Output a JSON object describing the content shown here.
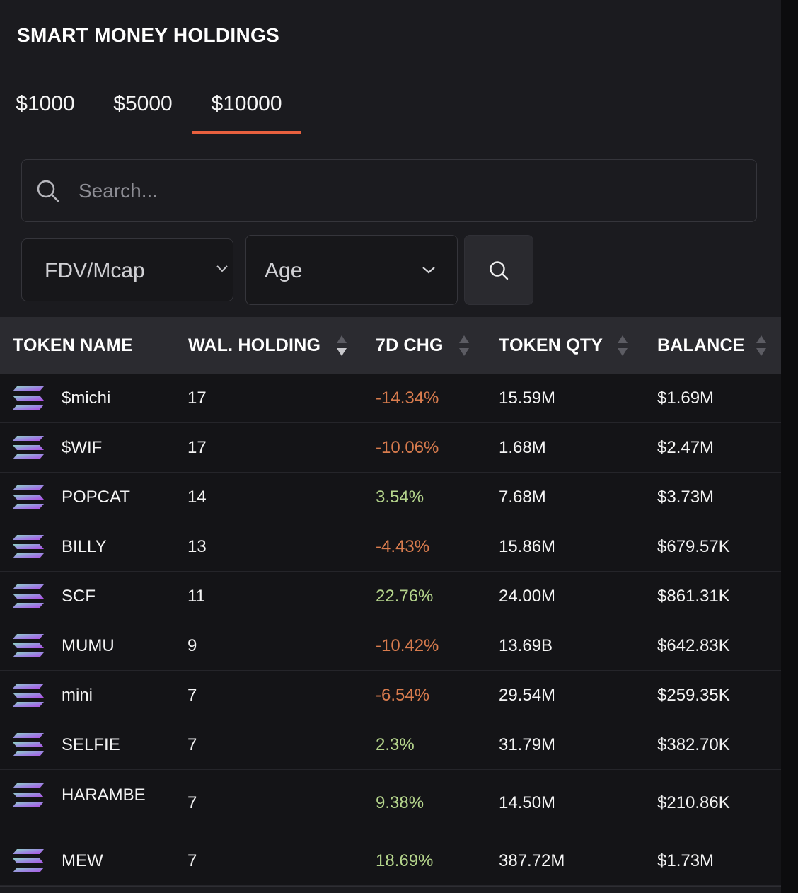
{
  "header": {
    "title": "SMART MONEY HOLDINGS"
  },
  "tabs": [
    {
      "label": "$1000",
      "active": false
    },
    {
      "label": "$5000",
      "active": false
    },
    {
      "label": "$10000",
      "active": true
    }
  ],
  "accent_color": "#e8603e",
  "search": {
    "placeholder": "Search...",
    "value": ""
  },
  "filters": {
    "fdv": {
      "label": "FDV/Mcap"
    },
    "age": {
      "label": "Age"
    }
  },
  "table": {
    "columns": [
      "TOKEN NAME",
      "WAL. HOLDING",
      "7D CHG",
      "TOKEN QTY",
      "BALANCE"
    ],
    "rows": [
      {
        "name": "$michi",
        "holding": "17",
        "chg": "-14.34%",
        "qty": "15.59M",
        "balance": "$1.69M"
      },
      {
        "name": "$WIF",
        "holding": "17",
        "chg": "-10.06%",
        "qty": "1.68M",
        "balance": "$2.47M"
      },
      {
        "name": "POPCAT",
        "holding": "14",
        "chg": "3.54%",
        "qty": "7.68M",
        "balance": "$3.73M"
      },
      {
        "name": "BILLY",
        "holding": "13",
        "chg": "-4.43%",
        "qty": "15.86M",
        "balance": "$679.57K"
      },
      {
        "name": "SCF",
        "holding": "11",
        "chg": "22.76%",
        "qty": "24.00M",
        "balance": "$861.31K"
      },
      {
        "name": "MUMU",
        "holding": "9",
        "chg": "-10.42%",
        "qty": "13.69B",
        "balance": "$642.83K"
      },
      {
        "name": "mini",
        "holding": "7",
        "chg": "-6.54%",
        "qty": "29.54M",
        "balance": "$259.35K"
      },
      {
        "name": "SELFIE",
        "holding": "7",
        "chg": "2.3%",
        "qty": "31.79M",
        "balance": "$382.70K"
      },
      {
        "name": "HARAMBE",
        "holding": "7",
        "chg": "9.38%",
        "qty": "14.50M",
        "balance": "$210.86K"
      },
      {
        "name": "MEW",
        "holding": "7",
        "chg": "18.69%",
        "qty": "387.72M",
        "balance": "$1.73M"
      }
    ]
  },
  "colors": {
    "positive": "#b5d58c",
    "negative": "#d97c4e"
  }
}
